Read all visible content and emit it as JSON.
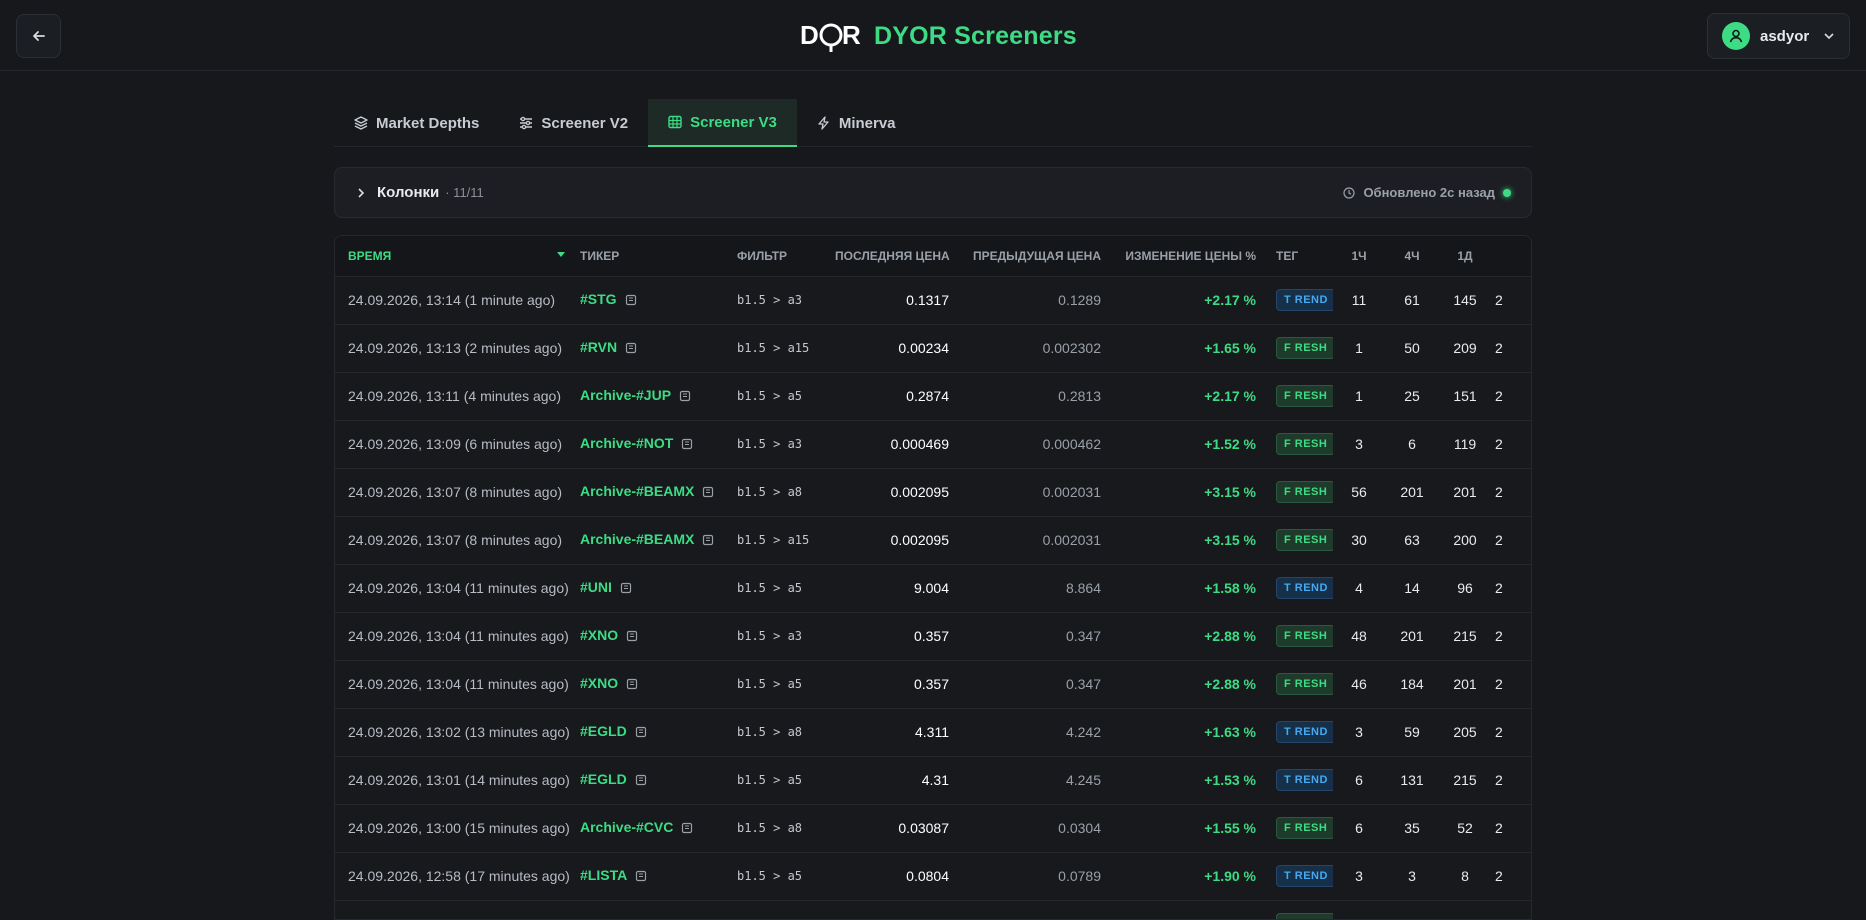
{
  "header": {
    "brand_title": "DYOR Screeners",
    "username": "asdyor"
  },
  "tabs": [
    {
      "label": "Market Depths",
      "icon": "layers-icon"
    },
    {
      "label": "Screener V2",
      "icon": "sliders-icon"
    },
    {
      "label": "Screener V3",
      "icon": "table-icon",
      "active": true
    },
    {
      "label": "Minerva",
      "icon": "bolt-icon"
    }
  ],
  "columns_panel": {
    "title": "Колонки",
    "count": "· 11/11",
    "updated": "Обновлено 2с назад"
  },
  "table": {
    "headers": [
      "Время",
      "Тикер",
      "Фильтр",
      "Последняя цена",
      "Предыдущая цена",
      "Изменение цены %",
      "Тег",
      "1ч",
      "4ч",
      "1д"
    ],
    "rows": [
      {
        "time": "24.09.2026, 13:14 (1 minute ago)",
        "ticker": "#STG",
        "filter": "b1.5 > a3",
        "last": "0.1317",
        "prev": "0.1289",
        "change": "+2.17 %",
        "tag": "T REND",
        "h1": "11",
        "h4": "61",
        "d1": "145"
      },
      {
        "time": "24.09.2026, 13:13 (2 minutes ago)",
        "ticker": "#RVN",
        "filter": "b1.5 > a15",
        "last": "0.00234",
        "prev": "0.002302",
        "change": "+1.65 %",
        "tag": "F RESH",
        "h1": "1",
        "h4": "50",
        "d1": "209"
      },
      {
        "time": "24.09.2026, 13:11 (4 minutes ago)",
        "ticker": "Archive-#JUP",
        "filter": "b1.5 > a5",
        "last": "0.2874",
        "prev": "0.2813",
        "change": "+2.17 %",
        "tag": "F RESH",
        "h1": "1",
        "h4": "25",
        "d1": "151"
      },
      {
        "time": "24.09.2026, 13:09 (6 minutes ago)",
        "ticker": "Archive-#NOT",
        "filter": "b1.5 > a3",
        "last": "0.000469",
        "prev": "0.000462",
        "change": "+1.52 %",
        "tag": "F RESH",
        "h1": "3",
        "h4": "6",
        "d1": "119"
      },
      {
        "time": "24.09.2026, 13:07 (8 minutes ago)",
        "ticker": "Archive-#BEAMX",
        "filter": "b1.5 > a8",
        "last": "0.002095",
        "prev": "0.002031",
        "change": "+3.15 %",
        "tag": "F RESH",
        "h1": "56",
        "h4": "201",
        "d1": "201"
      },
      {
        "time": "24.09.2026, 13:07 (8 minutes ago)",
        "ticker": "Archive-#BEAMX",
        "filter": "b1.5 > a15",
        "last": "0.002095",
        "prev": "0.002031",
        "change": "+3.15 %",
        "tag": "F RESH",
        "h1": "30",
        "h4": "63",
        "d1": "200"
      },
      {
        "time": "24.09.2026, 13:04 (11 minutes ago)",
        "ticker": "#UNI",
        "filter": "b1.5 > a5",
        "last": "9.004",
        "prev": "8.864",
        "change": "+1.58 %",
        "tag": "T REND",
        "h1": "4",
        "h4": "14",
        "d1": "96"
      },
      {
        "time": "24.09.2026, 13:04 (11 minutes ago)",
        "ticker": "#XNO",
        "filter": "b1.5 > a3",
        "last": "0.357",
        "prev": "0.347",
        "change": "+2.88 %",
        "tag": "F RESH",
        "h1": "48",
        "h4": "201",
        "d1": "215"
      },
      {
        "time": "24.09.2026, 13:04 (11 minutes ago)",
        "ticker": "#XNO",
        "filter": "b1.5 > a5",
        "last": "0.357",
        "prev": "0.347",
        "change": "+2.88 %",
        "tag": "F RESH",
        "h1": "46",
        "h4": "184",
        "d1": "201"
      },
      {
        "time": "24.09.2026, 13:02 (13 minutes ago)",
        "ticker": "#EGLD",
        "filter": "b1.5 > a8",
        "last": "4.311",
        "prev": "4.242",
        "change": "+1.63 %",
        "tag": "T REND",
        "h1": "3",
        "h4": "59",
        "d1": "205"
      },
      {
        "time": "24.09.2026, 13:01 (14 minutes ago)",
        "ticker": "#EGLD",
        "filter": "b1.5 > a5",
        "last": "4.31",
        "prev": "4.245",
        "change": "+1.53 %",
        "tag": "T REND",
        "h1": "6",
        "h4": "131",
        "d1": "215"
      },
      {
        "time": "24.09.2026, 13:00 (15 minutes ago)",
        "ticker": "Archive-#CVC",
        "filter": "b1.5 > a8",
        "last": "0.03087",
        "prev": "0.0304",
        "change": "+1.55 %",
        "tag": "F RESH",
        "h1": "6",
        "h4": "35",
        "d1": "52"
      },
      {
        "time": "24.09.2026, 12:58 (17 minutes ago)",
        "ticker": "#LISTA",
        "filter": "b1.5 > a5",
        "last": "0.0804",
        "prev": "0.0789",
        "change": "+1.90 %",
        "tag": "T REND",
        "h1": "3",
        "h4": "3",
        "d1": "8"
      },
      {
        "time": "",
        "ticker": "",
        "filter": "",
        "last": "",
        "prev": "",
        "change": "",
        "tag": "F RESH",
        "h1": "",
        "h4": "",
        "d1": ""
      }
    ],
    "clipped_col": "2"
  },
  "colors": {
    "accent": "#3ddc84",
    "trend": "#45a8f0",
    "bg": "#16181c"
  }
}
